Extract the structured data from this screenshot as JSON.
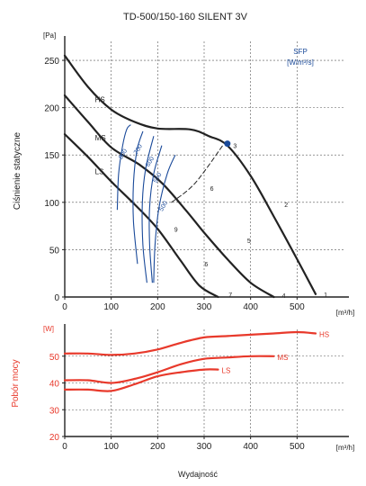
{
  "chart_data": [
    {
      "type": "line",
      "title": "TD-500/150-160 SILENT 3V",
      "ylabel": "Ciśnienie statyczne",
      "yunit": "[Pa]",
      "xunit": "[m³/h]",
      "xlim": [
        0,
        600
      ],
      "ylim": [
        0,
        270
      ],
      "x_ticks": [
        "0",
        "100",
        "200",
        "300",
        "400",
        "500"
      ],
      "y_ticks": [
        "0",
        "50",
        "100",
        "150",
        "200",
        "250"
      ],
      "grid": true,
      "series": [
        {
          "name": "HS",
          "color": "#222222",
          "points": [
            [
              0,
              255
            ],
            [
              50,
              222
            ],
            [
              100,
              198
            ],
            [
              150,
              185
            ],
            [
              200,
              178
            ],
            [
              270,
              177
            ],
            [
              310,
              170
            ],
            [
              350,
              160
            ],
            [
              400,
              128
            ],
            [
              450,
              85
            ],
            [
              500,
              40
            ],
            [
              540,
              3
            ]
          ]
        },
        {
          "name": "MS",
          "color": "#222222",
          "points": [
            [
              0,
              213
            ],
            [
              50,
              185
            ],
            [
              100,
              158
            ],
            [
              160,
              140
            ],
            [
              210,
              120
            ],
            [
              260,
              92
            ],
            [
              300,
              68
            ],
            [
              350,
              40
            ],
            [
              400,
              15
            ],
            [
              450,
              0
            ]
          ]
        },
        {
          "name": "LS",
          "color": "#222222",
          "points": [
            [
              0,
              172
            ],
            [
              50,
              148
            ],
            [
              100,
              122
            ],
            [
              150,
              98
            ],
            [
              200,
              72
            ],
            [
              250,
              38
            ],
            [
              290,
              12
            ],
            [
              330,
              0
            ]
          ]
        },
        {
          "name": "",
          "color": "#222222",
          "style": "dashed",
          "points": [
            [
              230,
              100
            ],
            [
              280,
              120
            ],
            [
              340,
              160
            ]
          ]
        }
      ],
      "sfp_title": "SFP",
      "sfp_unit": "[W/m³/s]",
      "sfp_color": "#1a4a9a",
      "sfp_curves": [
        {
          "label": "800",
          "label_at": [
            222,
            150
          ],
          "points": [
            [
              195,
              92
            ],
            [
              200,
              130
            ],
            [
              215,
              160
            ],
            [
              230,
              177
            ],
            [
              245,
              182
            ]
          ]
        },
        {
          "label": "700",
          "label_at": [
            278,
            155
          ],
          "points": [
            [
              270,
              35
            ],
            [
              255,
              80
            ],
            [
              255,
              120
            ],
            [
              268,
              155
            ],
            [
              290,
              175
            ]
          ]
        },
        {
          "label": "600",
          "label_at": [
            322,
            142
          ],
          "points": [
            [
              305,
              15
            ],
            [
              290,
              55
            ],
            [
              288,
              100
            ],
            [
              300,
              135
            ],
            [
              330,
              170
            ]
          ]
        },
        {
          "label": "550",
          "label_at": [
            350,
            125
          ],
          "points": [
            [
              325,
              15
            ],
            [
              315,
              55
            ],
            [
              315,
              95
            ],
            [
              330,
              130
            ],
            [
              360,
              160
            ]
          ]
        },
        {
          "label": "500",
          "label_at": [
            372,
            95
          ],
          "points": [
            [
              330,
              15
            ],
            [
              335,
              55
            ],
            [
              350,
              95
            ],
            [
              380,
              130
            ],
            [
              410,
              150
            ]
          ]
        }
      ],
      "point_labels": [
        {
          "label": "1",
          "x": 550,
          "y": 3
        },
        {
          "label": "2",
          "x": 465,
          "y": 98
        },
        {
          "label": "3",
          "x": 355,
          "y": 160
        },
        {
          "label": "4",
          "x": 460,
          "y": 2
        },
        {
          "label": "5",
          "x": 385,
          "y": 60
        },
        {
          "label": "6",
          "x": 305,
          "y": 115
        },
        {
          "label": "6",
          "x": 293,
          "y": 35
        },
        {
          "label": "7",
          "x": 345,
          "y": 3
        },
        {
          "label": "9",
          "x": 228,
          "y": 72
        }
      ],
      "operating_point": {
        "x": 350,
        "y": 162,
        "color": "#1a4a9a"
      }
    },
    {
      "type": "line",
      "ylabel": "Pobór mocy",
      "yunit": "[W]",
      "xunit": "[m³/h]",
      "xlabel": "Wydajność",
      "xlim": [
        0,
        600
      ],
      "ylim": [
        20,
        60
      ],
      "x_ticks": [
        "0",
        "100",
        "200",
        "300",
        "400",
        "500"
      ],
      "y_ticks": [
        "20",
        "30",
        "40",
        "50"
      ],
      "grid": true,
      "axis_color": "#e8392b",
      "series": [
        {
          "name": "HS",
          "color": "#e8392b",
          "points": [
            [
              0,
              51
            ],
            [
              50,
              51
            ],
            [
              100,
              50.5
            ],
            [
              150,
              51
            ],
            [
              200,
              52.5
            ],
            [
              250,
              55
            ],
            [
              300,
              57
            ],
            [
              350,
              57.5
            ],
            [
              400,
              58
            ],
            [
              450,
              58.5
            ],
            [
              500,
              59
            ],
            [
              540,
              58.5
            ]
          ]
        },
        {
          "name": "MS",
          "color": "#e8392b",
          "points": [
            [
              0,
              41
            ],
            [
              50,
              41
            ],
            [
              100,
              40
            ],
            [
              150,
              41.5
            ],
            [
              200,
              44
            ],
            [
              250,
              47
            ],
            [
              300,
              49
            ],
            [
              350,
              49.5
            ],
            [
              400,
              50
            ],
            [
              450,
              50
            ]
          ]
        },
        {
          "name": "LS",
          "color": "#e8392b",
          "points": [
            [
              0,
              37.5
            ],
            [
              50,
              37.5
            ],
            [
              100,
              37
            ],
            [
              150,
              39.5
            ],
            [
              200,
              42.5
            ],
            [
              250,
              44
            ],
            [
              300,
              45
            ],
            [
              330,
              45
            ]
          ]
        }
      ]
    }
  ]
}
